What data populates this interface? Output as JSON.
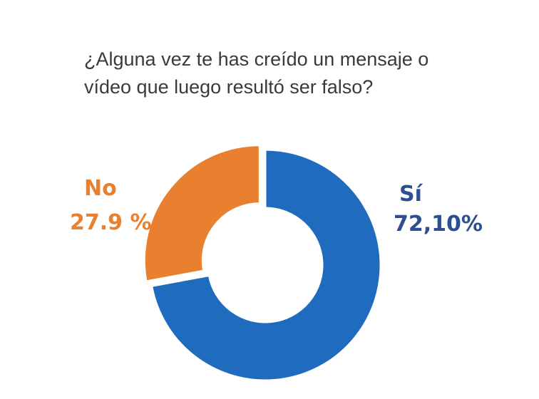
{
  "chart_data": {
    "type": "pie",
    "donut": true,
    "title_lines": [
      "¿Alguna vez te has creído un mensaje o",
      "vídeo que luego resultó ser falso?"
    ],
    "categories": [
      "Sí",
      "No"
    ],
    "values": [
      72.1,
      27.9
    ],
    "value_labels": [
      "72,10%",
      "27.9 %"
    ],
    "colors": [
      "#1f6cbf",
      "#e8802f"
    ]
  }
}
